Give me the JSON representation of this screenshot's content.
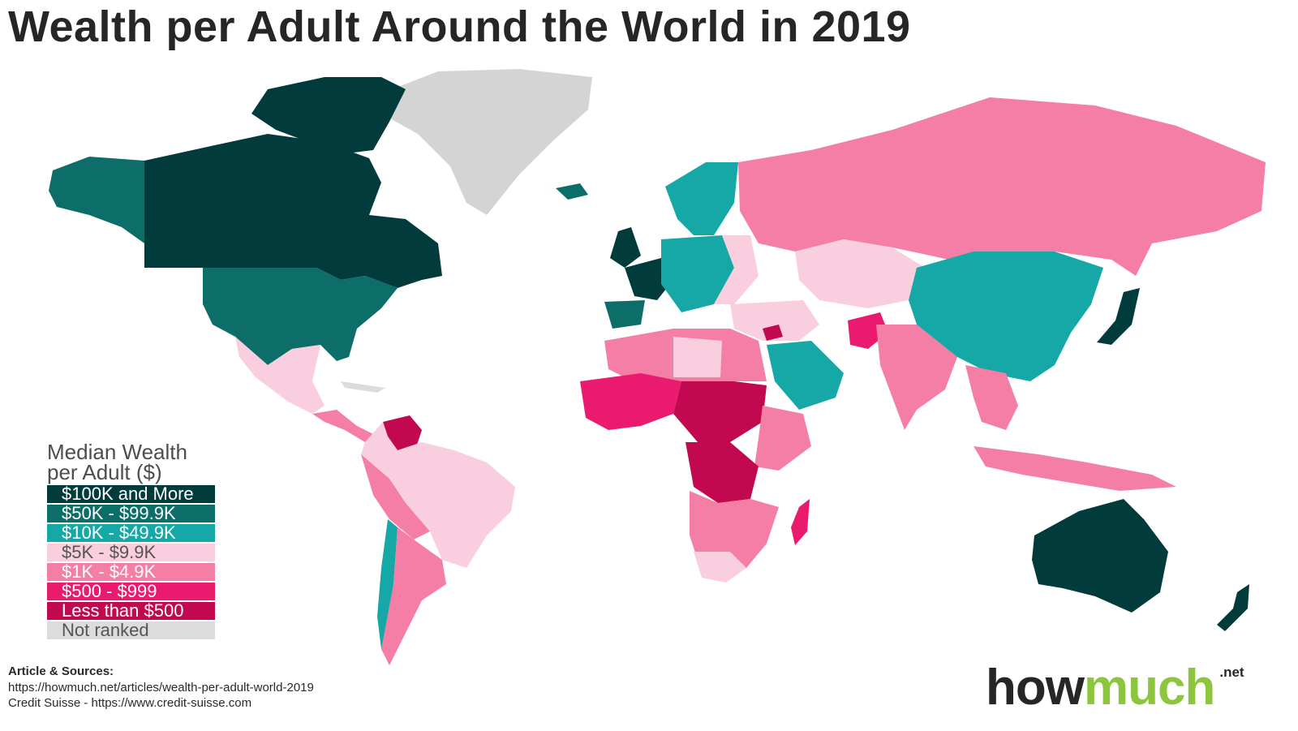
{
  "title": "Wealth per Adult Around the World in 2019",
  "legend": {
    "title_line1": "Median Wealth",
    "title_line2": "per Adult ($)",
    "items": [
      {
        "label": "$100K and More",
        "color": "#023b3b",
        "text": "light"
      },
      {
        "label": "$50K - $99.9K",
        "color": "#0c6d69",
        "text": "light"
      },
      {
        "label": "$10K - $49.9K",
        "color": "#15a8a6",
        "text": "light"
      },
      {
        "label": "$5K - $9.9K",
        "color": "#f9cfdf",
        "text": "dark"
      },
      {
        "label": "$1K - $4.9K",
        "color": "#f47ea6",
        "text": "light"
      },
      {
        "label": "$500 - $999",
        "color": "#ea1a6e",
        "text": "light"
      },
      {
        "label": "Less than $500",
        "color": "#c2094f",
        "text": "light"
      },
      {
        "label": "Not ranked",
        "color": "#dcdcdc",
        "text": "dark"
      }
    ]
  },
  "sources": {
    "heading": "Article & Sources:",
    "line1": "https://howmuch.net/articles/wealth-per-adult-world-2019",
    "line2": "Credit Suisse - https://www.credit-suisse.com"
  },
  "brand": {
    "part1": "how",
    "part2": "much",
    "suffix": ".net",
    "accent": "#8cc63f"
  }
}
